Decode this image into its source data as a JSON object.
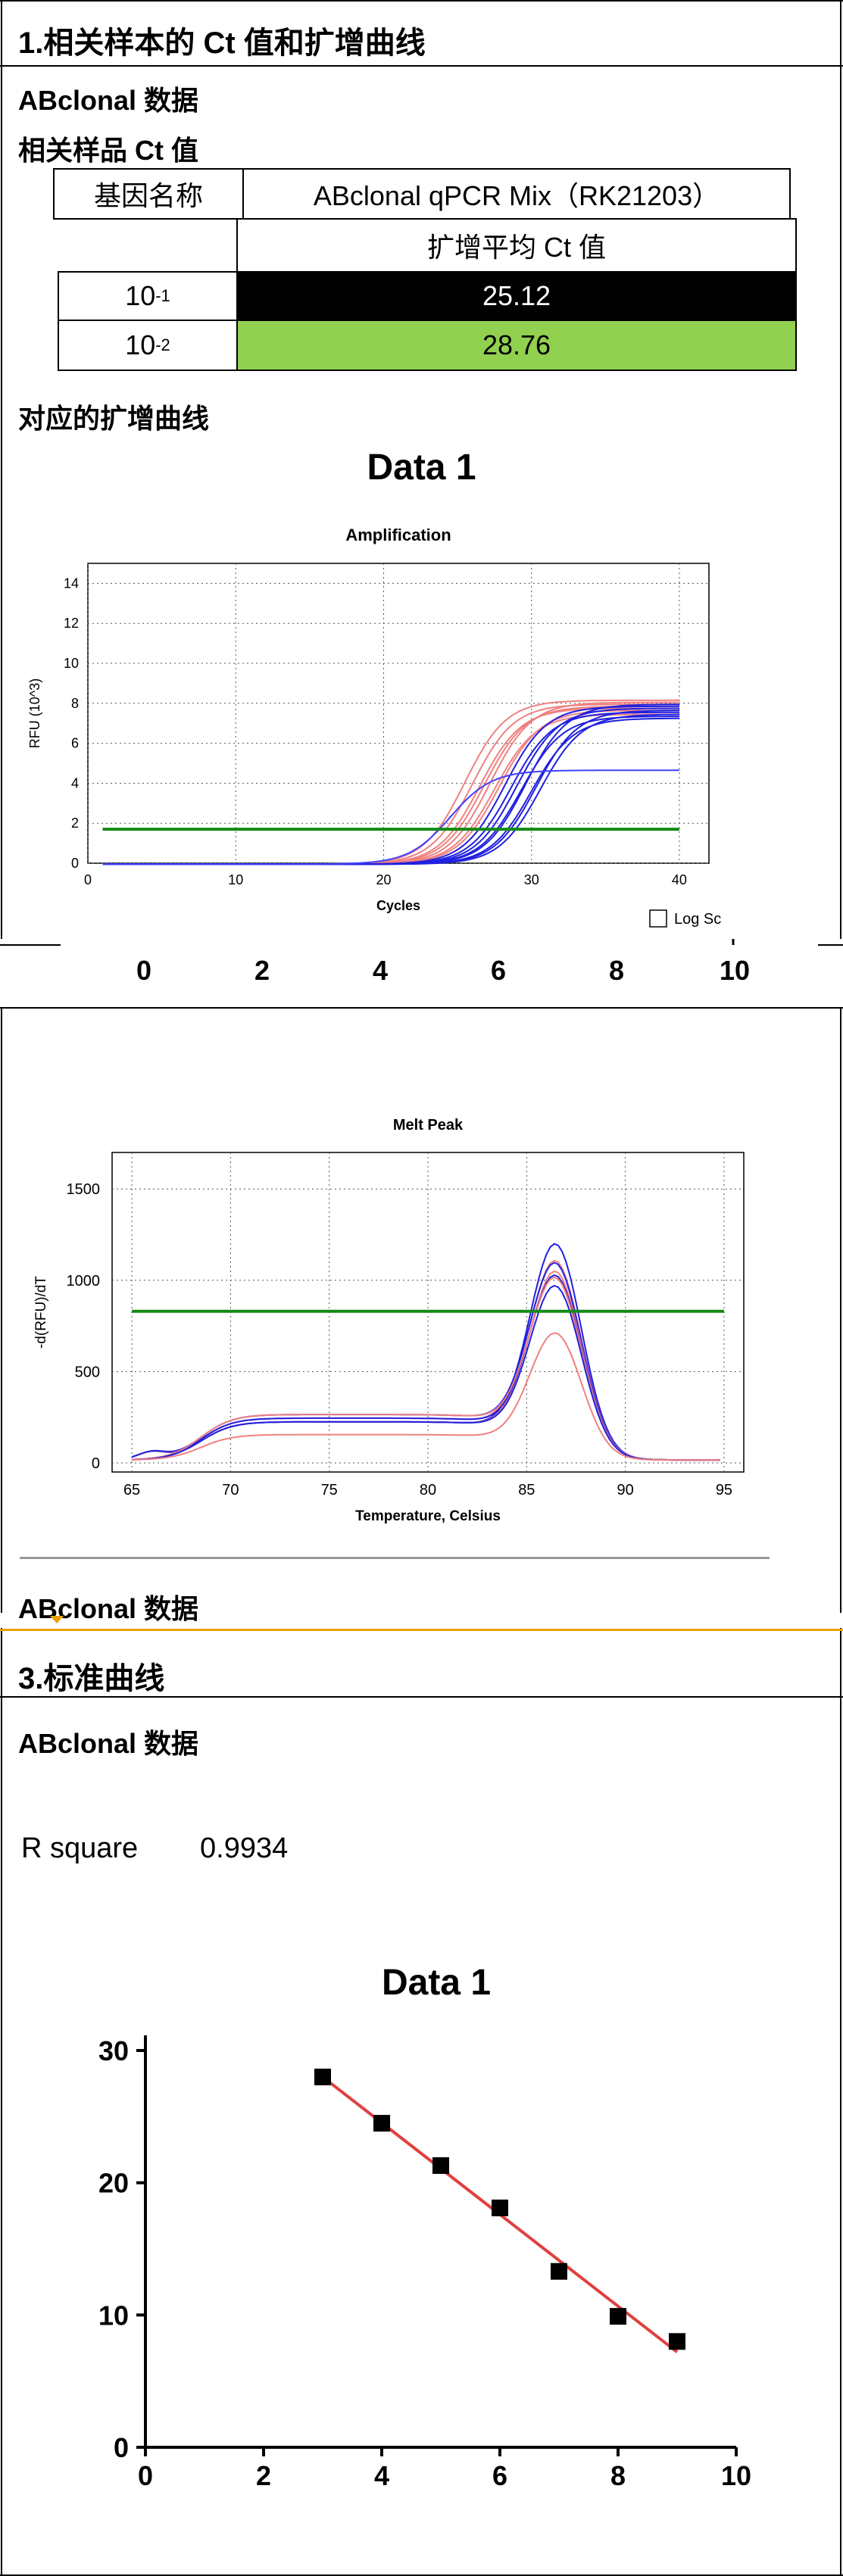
{
  "section1": {
    "title": "1.相关样本的 Ct 值和扩增曲线",
    "subtitle": "ABclonal 数据",
    "table_title": "相关样品 Ct 值",
    "table": {
      "col1_header": "基因名称",
      "col2_header": "ABclonal qPCR Mix（RK21203）",
      "col2_subheader": "扩增平均 Ct 值",
      "rows": [
        {
          "base": "10",
          "exp": "-1",
          "value": "25.12",
          "color": "#000000",
          "text_color": "#ffffff"
        },
        {
          "base": "10",
          "exp": "-2",
          "value": "28.76",
          "color": "#92d050",
          "text_color": "#000000"
        }
      ]
    },
    "curves_title": "对应的扩增曲线"
  },
  "amp_chart": {
    "big_title": "Data 1",
    "chart_data": {
      "type": "line",
      "title": "Amplification",
      "xlabel": "Cycles",
      "ylabel": "RFU (10^3)",
      "xlim": [
        0,
        42
      ],
      "ylim": [
        0,
        15
      ],
      "xticks": [
        "0",
        "10",
        "20",
        "30",
        "40"
      ],
      "yticks": [
        "0",
        "2",
        "4",
        "6",
        "8",
        "10",
        "12",
        "14"
      ],
      "threshold": 1.7,
      "grid": true,
      "series": [
        {
          "color": "#f08080",
          "midpoints": [
            25.5,
            26.0,
            26.5,
            26.8,
            27.2,
            27.5,
            27.8
          ],
          "plateaus": [
            8.2,
            8.0,
            7.8,
            7.9,
            8.1,
            7.5,
            7.7
          ]
        },
        {
          "color": "#2020e0",
          "midpoints": [
            28.2,
            28.6,
            29.0,
            29.3,
            29.6,
            30.0,
            30.3,
            30.6
          ],
          "plateaus": [
            7.9,
            7.6,
            7.8,
            7.4,
            8.0,
            7.3,
            7.7,
            7.5
          ]
        },
        {
          "color": "#4040ff",
          "midpoints": [
            24.5
          ],
          "plateaus": [
            4.7
          ]
        }
      ]
    },
    "log_scale_label": "Log Sc",
    "bottom_axis_ticks": [
      "0",
      "2",
      "4",
      "6",
      "8",
      "10"
    ]
  },
  "melt_chart": {
    "chart_data": {
      "type": "line",
      "title": "Melt Peak",
      "xlabel": "Temperature, Celsius",
      "ylabel": "-d(RFU)/dT",
      "xlim": [
        64,
        96
      ],
      "ylim": [
        -50,
        1700
      ],
      "xticks": [
        "65",
        "70",
        "75",
        "80",
        "85",
        "90",
        "95"
      ],
      "yticks": [
        "0",
        "500",
        "1000",
        "1500"
      ],
      "threshold": 830,
      "grid": true,
      "peak_temperature": 86.5,
      "peak_heights": [
        1100,
        1000,
        980,
        950,
        920,
        900,
        870,
        640
      ]
    },
    "footer_label": "ABclonal 数据"
  },
  "section3": {
    "title": "3.标准曲线",
    "subtitle": "ABclonal 数据",
    "r_square_label": "R square",
    "r_square_value": "0.9934"
  },
  "std_chart": {
    "chart_data": {
      "type": "scatter",
      "title": "Data 1",
      "xlim": [
        0,
        10
      ],
      "ylim": [
        0,
        30
      ],
      "xticks": [
        "0",
        "2",
        "4",
        "6",
        "8",
        "10"
      ],
      "yticks": [
        "0",
        "10",
        "20",
        "30"
      ],
      "x": [
        3,
        4,
        5,
        6,
        7,
        8,
        9
      ],
      "y": [
        28.0,
        24.5,
        21.3,
        18.1,
        13.3,
        9.9,
        8.0
      ],
      "fit_line": {
        "x": [
          3,
          9
        ],
        "y": [
          28.0,
          7.2
        ],
        "color": "#e04040"
      }
    }
  }
}
